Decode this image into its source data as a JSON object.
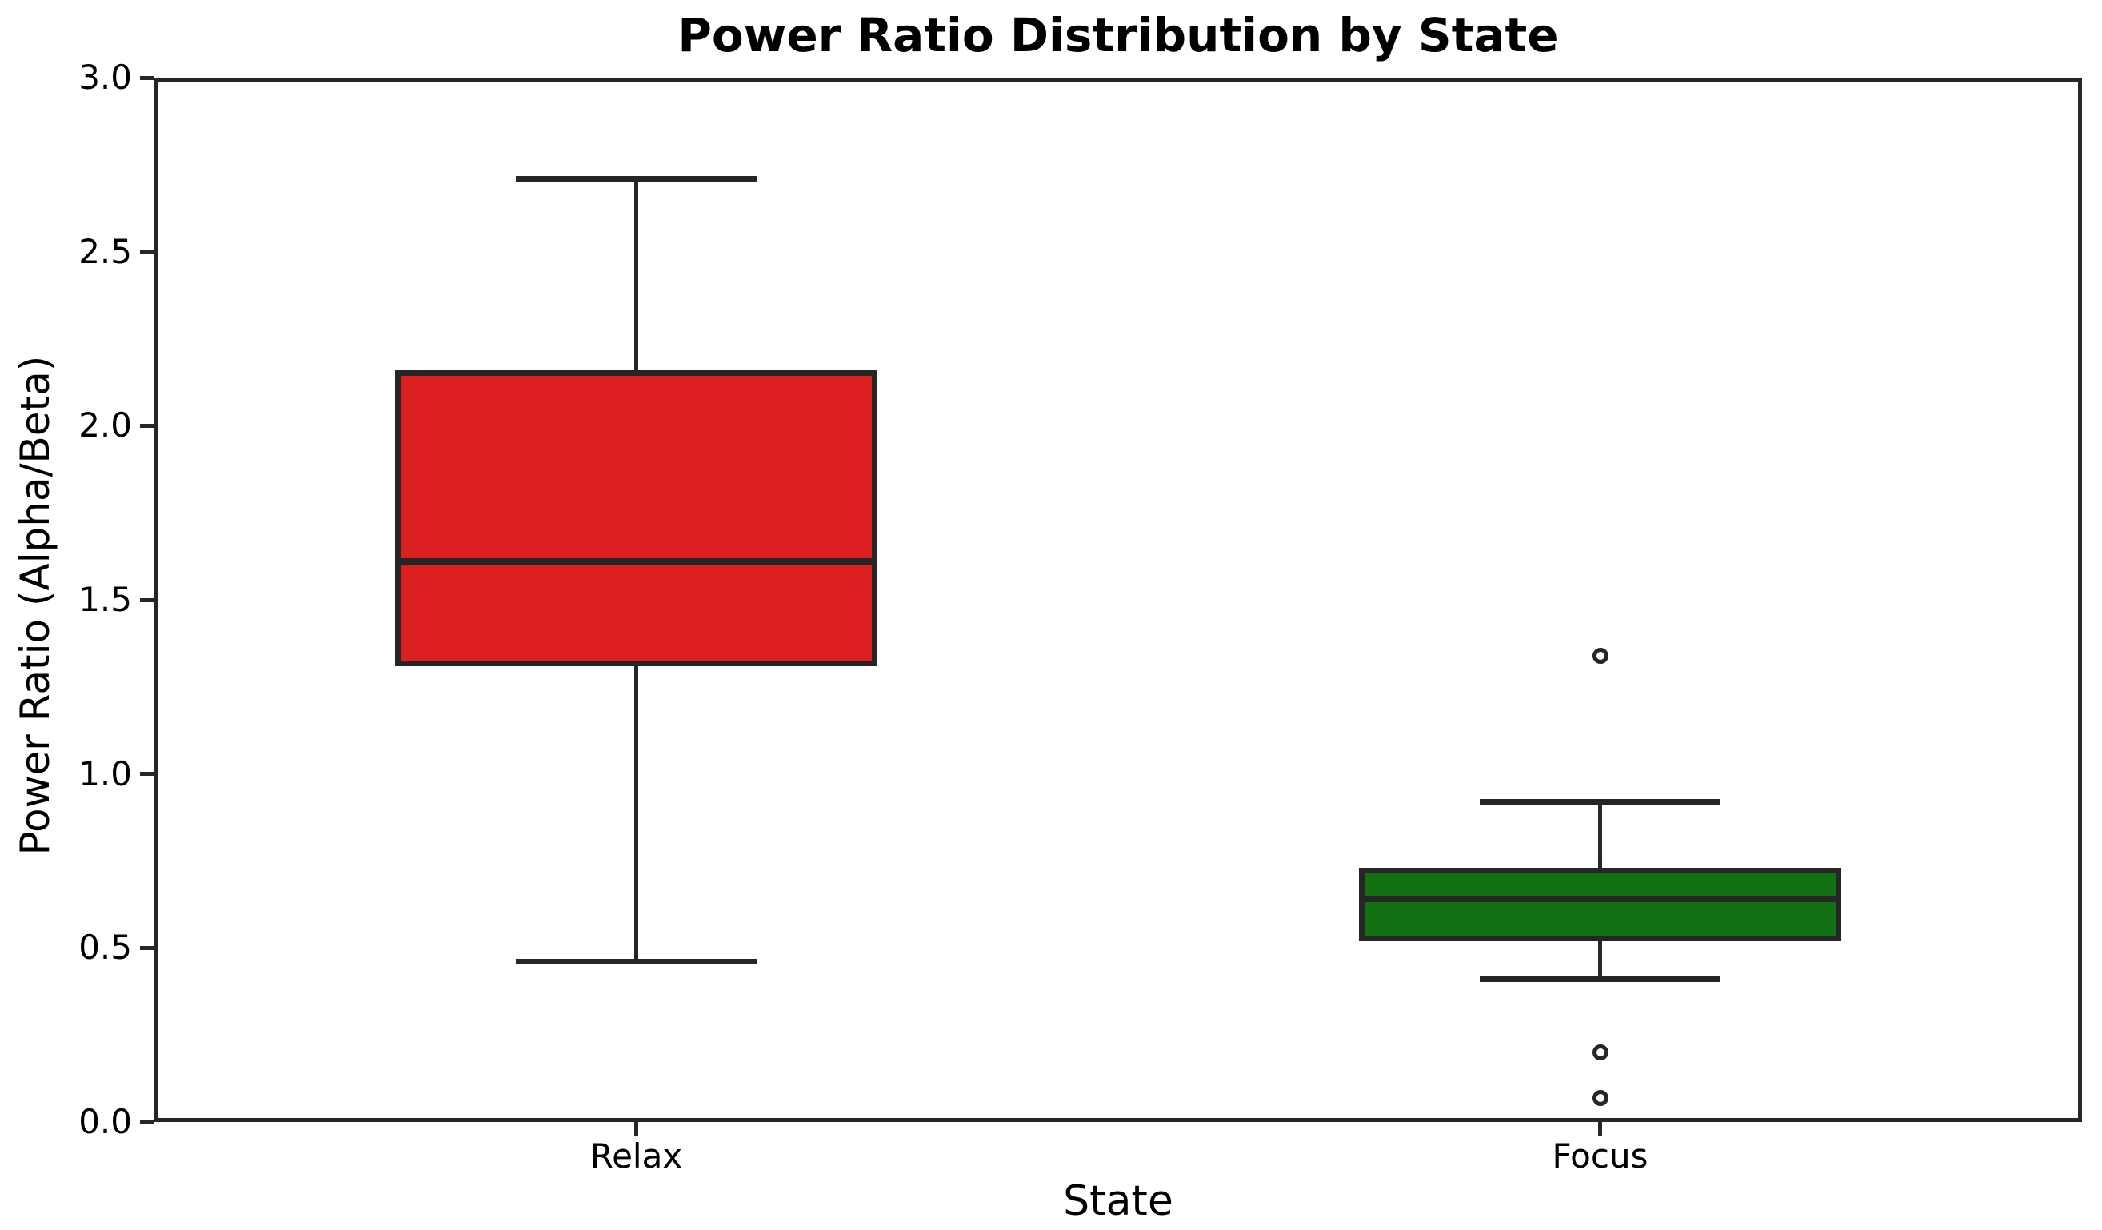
{
  "chart_data": {
    "type": "boxplot",
    "title": "Power Ratio Distribution by State",
    "xlabel": "State",
    "ylabel": "Power Ratio (Alpha/Beta)",
    "ylim": [
      0.0,
      3.0
    ],
    "yticks": [
      0.0,
      0.5,
      1.0,
      1.5,
      2.0,
      2.5,
      3.0
    ],
    "ytick_labels": [
      "0.0",
      "0.5",
      "1.0",
      "1.5",
      "2.0",
      "2.5",
      "3.0"
    ],
    "categories": [
      "Relax",
      "Focus"
    ],
    "grid": false,
    "legend": null,
    "frame": "all-four-spines",
    "colors": {
      "relax_fill": "#dc2020",
      "focus_fill": "#117011",
      "edge": "#262626",
      "background": "#ffffff",
      "text": "#000000"
    },
    "series": [
      {
        "name": "Relax",
        "whisker_low": 0.46,
        "q1": 1.31,
        "median": 1.61,
        "q3": 2.16,
        "whisker_high": 2.71,
        "outliers": [],
        "fill_color": "#dc2020"
      },
      {
        "name": "Focus",
        "whisker_low": 0.41,
        "q1": 0.52,
        "median": 0.64,
        "q3": 0.73,
        "whisker_high": 0.92,
        "outliers": [
          1.34,
          0.2,
          0.07
        ],
        "fill_color": "#117011"
      }
    ]
  }
}
